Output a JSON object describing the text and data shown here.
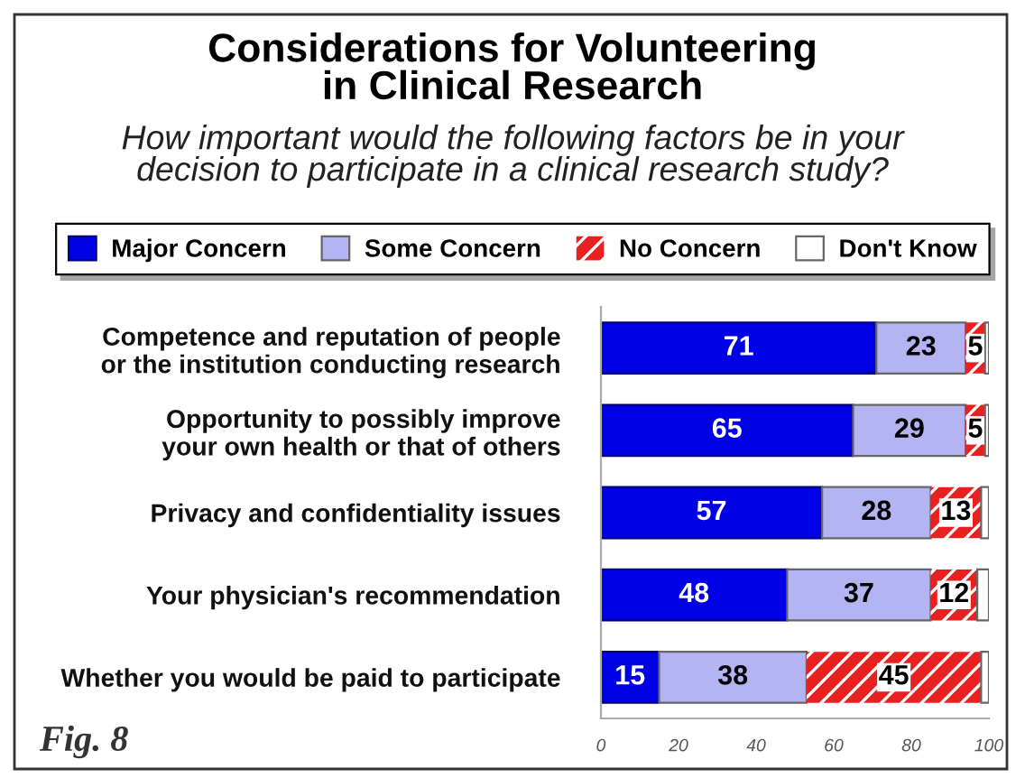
{
  "chart_data": {
    "type": "bar",
    "orientation": "horizontal",
    "stacked": true,
    "title": "Considerations for Volunteering\nin Clinical Research",
    "subtitle": "How important would the following factors be in your\ndecision to participate in a clinical research study?",
    "categories": [
      "Competence and reputation of people\nor the institution conducting research",
      "Opportunity to possibly improve\nyour own health or that of others",
      "Privacy and confidentiality issues",
      "Your physician's recommendation",
      "Whether you would be paid to participate"
    ],
    "series": [
      {
        "name": "Major Concern",
        "color": "#0000e6",
        "values": [
          71,
          65,
          57,
          48,
          15
        ],
        "value_labels": [
          "71",
          "65",
          "57",
          "48",
          "15"
        ]
      },
      {
        "name": "Some Concern",
        "color": "#b4b4f2",
        "values": [
          23,
          29,
          28,
          37,
          38
        ],
        "value_labels": [
          "23",
          "29",
          "28",
          "37",
          "38"
        ]
      },
      {
        "name": "No Concern",
        "color": "#e82020",
        "values": [
          5,
          5,
          13,
          12,
          45
        ],
        "value_labels": [
          "5",
          "5",
          "13",
          "12",
          "45"
        ]
      },
      {
        "name": "Don't Know",
        "color": "#ffffff",
        "values": [
          1,
          1,
          2,
          3,
          2
        ],
        "value_labels": [
          null,
          null,
          null,
          null,
          null
        ]
      }
    ],
    "xlim": [
      0,
      100
    ],
    "xticks": [
      0,
      20,
      40,
      60,
      80,
      100
    ],
    "legend": "top",
    "grid": false,
    "annotations": [
      "Fig. 8"
    ]
  }
}
